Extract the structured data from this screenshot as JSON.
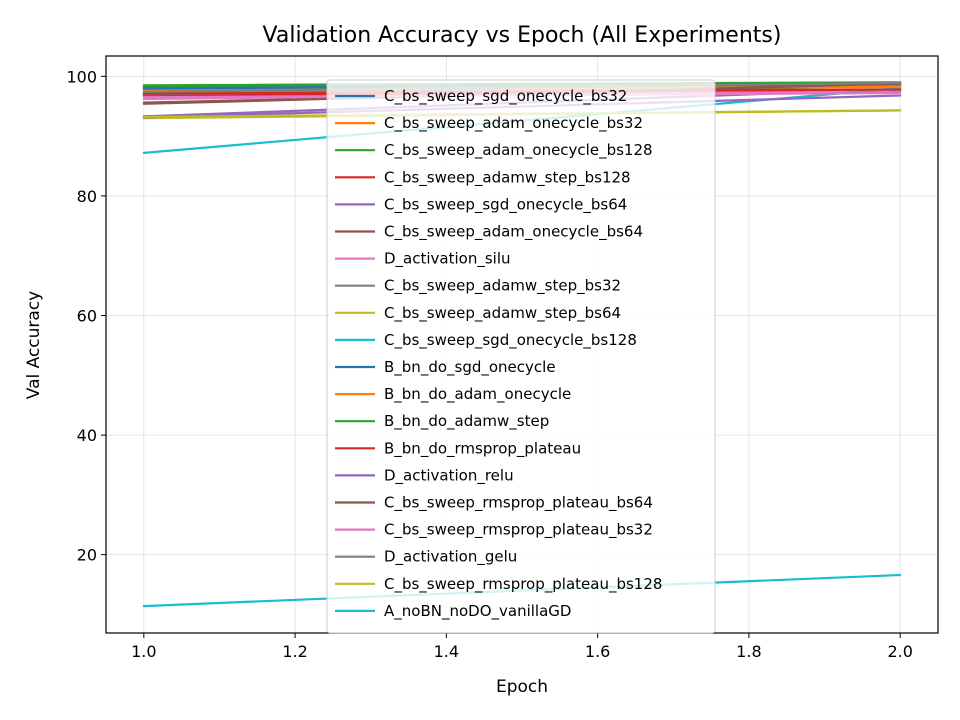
{
  "chart_data": {
    "type": "line",
    "title": "Validation Accuracy vs Epoch (All Experiments)",
    "xlabel": "Epoch",
    "ylabel": "Val Accuracy",
    "xlim": [
      0.95,
      2.05
    ],
    "ylim": [
      6.9,
      103.4
    ],
    "x_ticks": [
      1.0,
      1.2,
      1.4,
      1.6,
      1.8,
      2.0
    ],
    "x_tick_labels": [
      "1.0",
      "1.2",
      "1.4",
      "1.6",
      "1.8",
      "2.0"
    ],
    "y_ticks": [
      20,
      40,
      60,
      80,
      100
    ],
    "y_tick_labels": [
      "20",
      "40",
      "60",
      "80",
      "100"
    ],
    "grid": true,
    "legend_position": "center",
    "x": [
      1,
      2
    ],
    "series": [
      {
        "name": "C_bs_sweep_sgd_onecycle_bs32",
        "color": "#1f77b4",
        "values": [
          97.8,
          98.6
        ]
      },
      {
        "name": "C_bs_sweep_adam_onecycle_bs32",
        "color": "#ff7f0e",
        "values": [
          97.3,
          98.2
        ]
      },
      {
        "name": "C_bs_sweep_adam_onecycle_bs128",
        "color": "#2ca02c",
        "values": [
          98.3,
          98.9
        ]
      },
      {
        "name": "C_bs_sweep_adamw_step_bs128",
        "color": "#d62728",
        "values": [
          96.8,
          97.5
        ]
      },
      {
        "name": "C_bs_sweep_sgd_onecycle_bs64",
        "color": "#9467bd",
        "values": [
          93.3,
          97.9
        ]
      },
      {
        "name": "C_bs_sweep_adam_onecycle_bs64",
        "color": "#8c564b",
        "values": [
          95.6,
          98.5
        ]
      },
      {
        "name": "D_activation_silu",
        "color": "#e377c2",
        "values": [
          96.2,
          97.6
        ]
      },
      {
        "name": "C_bs_sweep_adamw_step_bs32",
        "color": "#7f7f7f",
        "values": [
          97.0,
          98.4
        ]
      },
      {
        "name": "C_bs_sweep_adamw_step_bs64",
        "color": "#bcbd22",
        "values": [
          93.0,
          94.3
        ]
      },
      {
        "name": "C_bs_sweep_sgd_onecycle_bs128",
        "color": "#17becf",
        "values": [
          87.2,
          98.0
        ]
      },
      {
        "name": "B_bn_do_sgd_onecycle",
        "color": "#1f77b4",
        "values": [
          98.0,
          98.7
        ]
      },
      {
        "name": "B_bn_do_adam_onecycle",
        "color": "#ff7f0e",
        "values": [
          97.6,
          98.3
        ]
      },
      {
        "name": "B_bn_do_adamw_step",
        "color": "#2ca02c",
        "values": [
          98.5,
          99.0
        ]
      },
      {
        "name": "B_bn_do_rmsprop_plateau",
        "color": "#d62728",
        "values": [
          97.1,
          97.8
        ]
      },
      {
        "name": "D_activation_relu",
        "color": "#9467bd",
        "values": [
          93.1,
          96.8
        ]
      },
      {
        "name": "C_bs_sweep_rmsprop_plateau_bs64",
        "color": "#8c564b",
        "values": [
          95.4,
          98.8
        ]
      },
      {
        "name": "C_bs_sweep_rmsprop_plateau_bs32",
        "color": "#e377c2",
        "values": [
          96.5,
          97.2
        ]
      },
      {
        "name": "D_activation_gelu",
        "color": "#7f7f7f",
        "values": [
          97.4,
          98.9
        ]
      },
      {
        "name": "C_bs_sweep_rmsprop_plateau_bs128",
        "color": "#bcbd22",
        "values": [
          93.2,
          94.3
        ]
      },
      {
        "name": "A_noBN_noDO_vanillaGD",
        "color": "#17becf",
        "values": [
          11.4,
          16.6
        ]
      }
    ]
  }
}
